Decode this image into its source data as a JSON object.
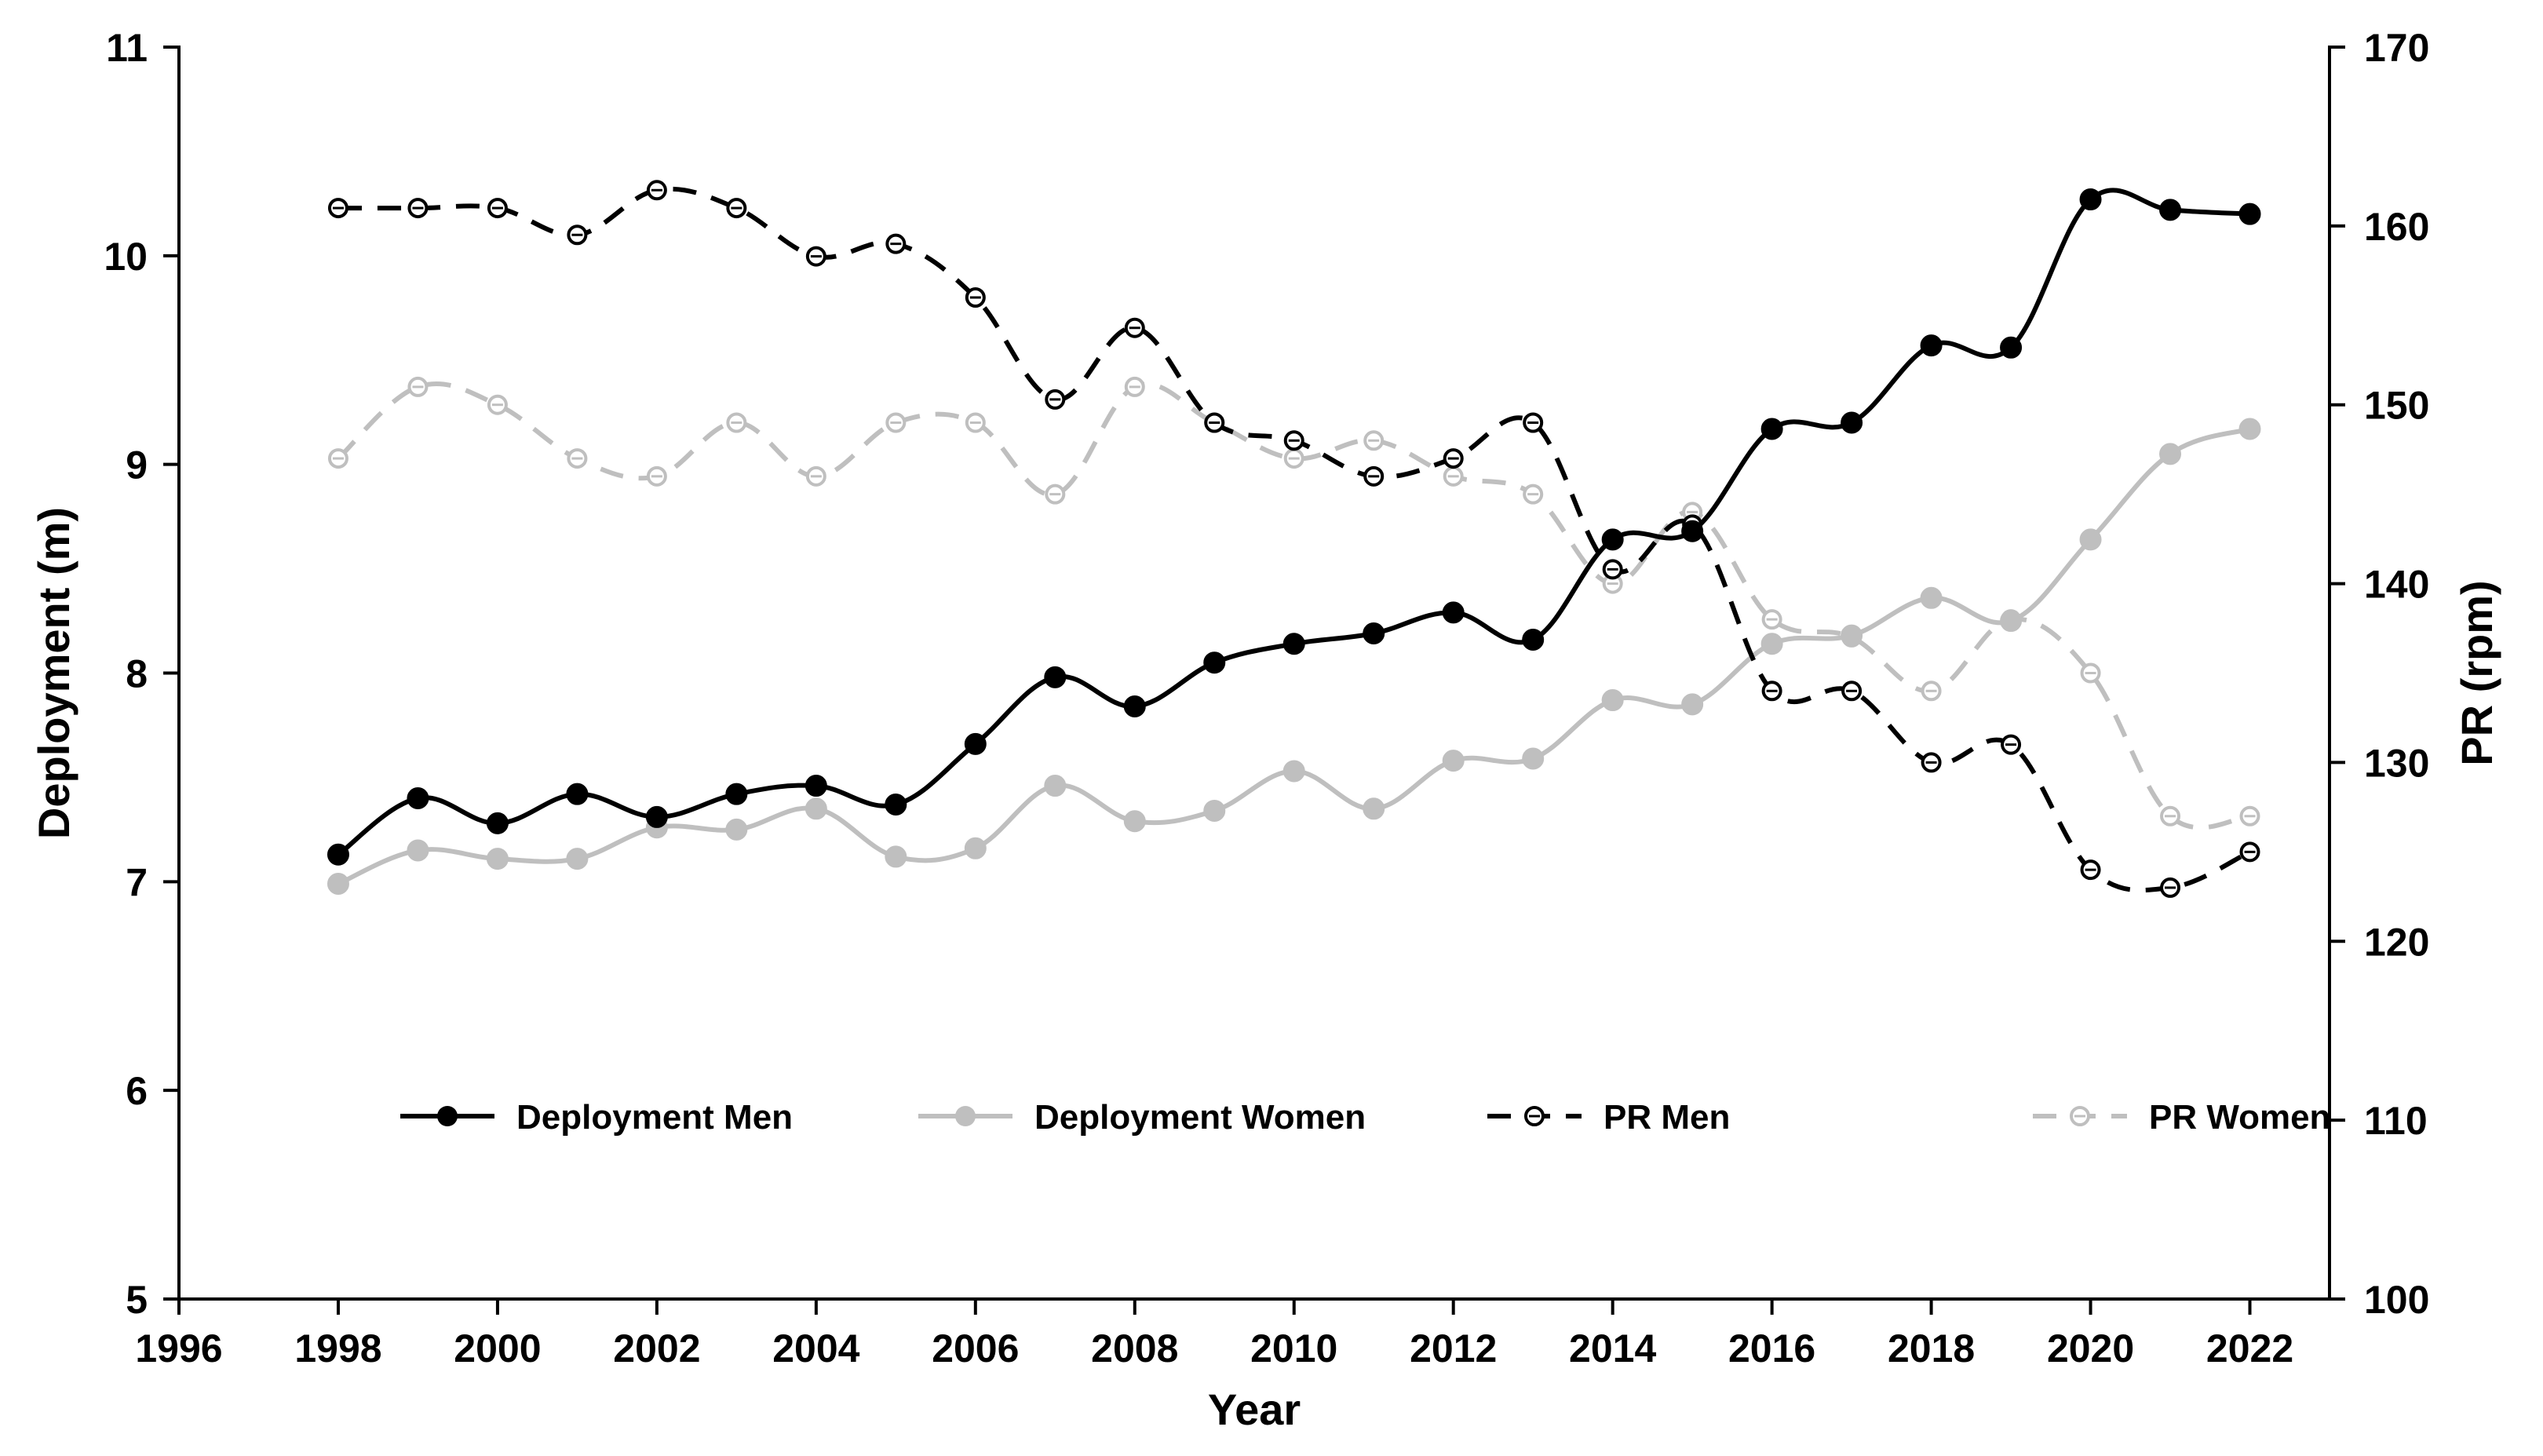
{
  "chart_data": {
    "type": "line",
    "xlabel": "Year",
    "ylabel_left": "Deployment (m)",
    "ylabel_right": "PR (rpm)",
    "xlim": [
      1996,
      2023
    ],
    "xticks": [
      "1996",
      "1998",
      "2000",
      "2002",
      "2004",
      "2006",
      "2008",
      "2010",
      "2012",
      "2014",
      "2016",
      "2018",
      "2020",
      "2022"
    ],
    "ylim_left": [
      5,
      11
    ],
    "yticks_left": [
      "5",
      "6",
      "7",
      "8",
      "9",
      "10",
      "11"
    ],
    "ylim_right": [
      100,
      170
    ],
    "yticks_right": [
      "100",
      "110",
      "120",
      "130",
      "140",
      "150",
      "160",
      "170"
    ],
    "grid": false,
    "legend_position": "bottom-center",
    "x": [
      1998,
      1999,
      2000,
      2001,
      2002,
      2003,
      2004,
      2005,
      2006,
      2007,
      2008,
      2009,
      2010,
      2011,
      2012,
      2013,
      2014,
      2015,
      2016,
      2017,
      2018,
      2019,
      2020,
      2021,
      2022
    ],
    "series": [
      {
        "name": "Deployment Men",
        "axis": "left",
        "color": "#000000",
        "dashed": false,
        "marker": "filled",
        "values": [
          7.13,
          7.4,
          7.28,
          7.42,
          7.31,
          7.42,
          7.46,
          7.37,
          7.66,
          7.98,
          7.84,
          8.05,
          8.14,
          8.19,
          8.29,
          8.16,
          8.64,
          8.68,
          9.17,
          9.2,
          9.57,
          9.56,
          10.27,
          10.22,
          10.2
        ]
      },
      {
        "name": "Deployment Women",
        "axis": "left",
        "color": "#bfbfbf",
        "dashed": false,
        "marker": "filled",
        "values": [
          6.99,
          7.15,
          7.11,
          7.11,
          7.26,
          7.25,
          7.35,
          7.12,
          7.16,
          7.46,
          7.29,
          7.34,
          7.53,
          7.35,
          7.58,
          7.59,
          7.87,
          7.85,
          8.14,
          8.18,
          8.36,
          8.25,
          8.64,
          9.05,
          9.17
        ]
      },
      {
        "name": "PR Men",
        "axis": "right",
        "color": "#000000",
        "dashed": true,
        "marker": "open",
        "values": [
          161,
          161,
          161,
          159.5,
          162,
          161,
          158.3,
          159,
          156,
          150.3,
          154.3,
          149,
          148,
          146,
          147,
          149,
          140.8,
          143.3,
          134,
          134,
          130,
          131,
          124,
          123,
          125
        ]
      },
      {
        "name": "PR Women",
        "axis": "right",
        "color": "#bfbfbf",
        "dashed": true,
        "marker": "open",
        "values": [
          147,
          151,
          150,
          147,
          146,
          149,
          146,
          149,
          149,
          145,
          151,
          149,
          147,
          148,
          146,
          145,
          140,
          144,
          138,
          137,
          134,
          138,
          135,
          127,
          127
        ]
      }
    ]
  }
}
